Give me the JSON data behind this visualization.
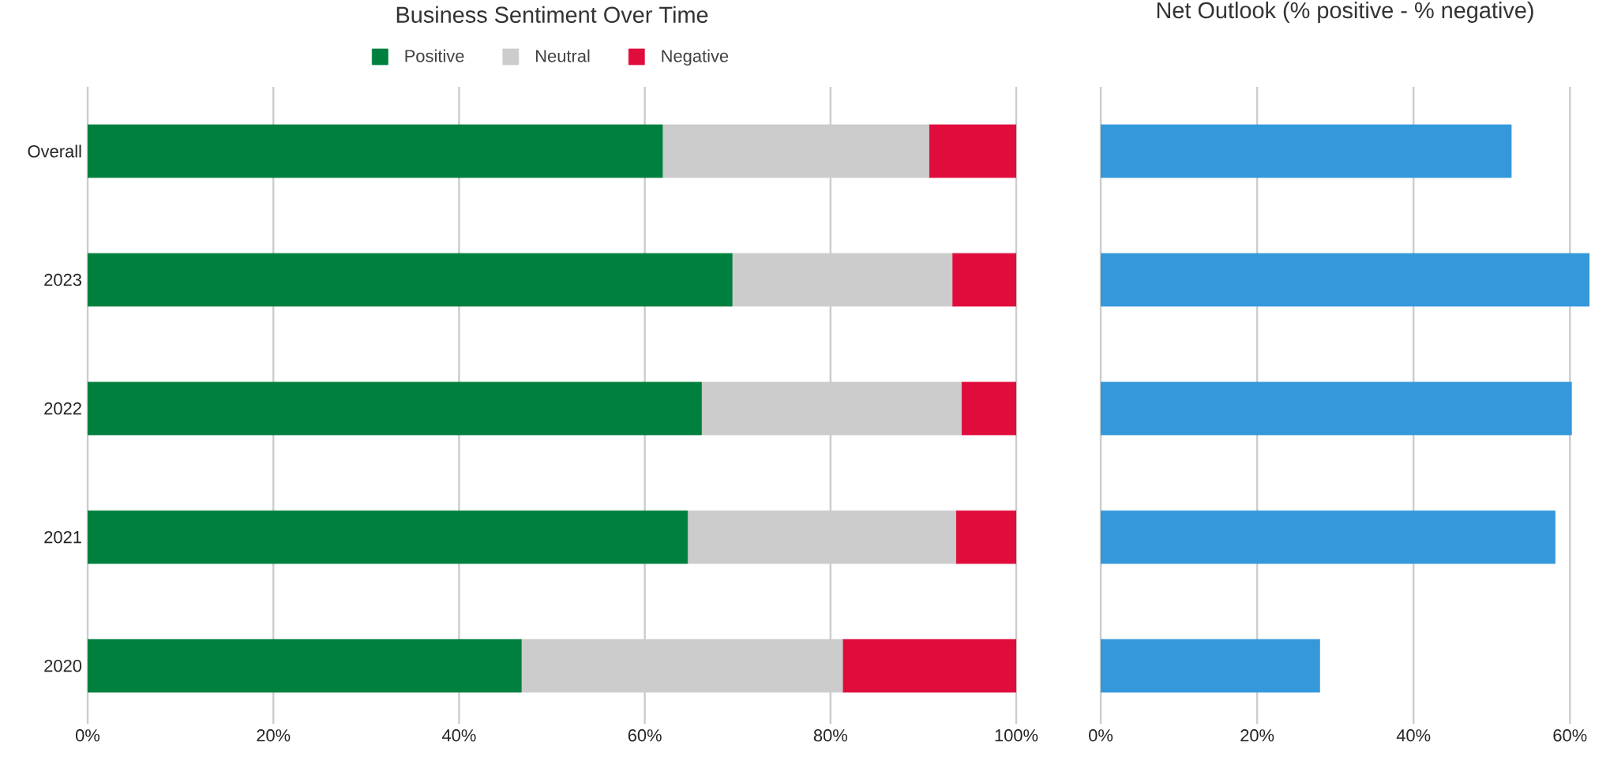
{
  "chart_data": [
    {
      "type": "bar",
      "orientation": "horizontal",
      "stacked": true,
      "title": "Business Sentiment Over Time",
      "categories": [
        "Overall",
        "2023",
        "2022",
        "2021",
        "2020"
      ],
      "series": [
        {
          "name": "Positive",
          "color": "#00803f",
          "values": [
            61.9,
            69.4,
            66.1,
            64.6,
            46.7
          ]
        },
        {
          "name": "Neutral",
          "color": "#cccccc",
          "values": [
            28.7,
            23.7,
            28.0,
            28.9,
            34.6
          ]
        },
        {
          "name": "Negative",
          "color": "#e00c3c",
          "values": [
            9.4,
            6.9,
            5.9,
            6.5,
            18.7
          ]
        }
      ],
      "xlim": [
        0,
        100
      ],
      "xticks": [
        {
          "value": 0,
          "label": "0%"
        },
        {
          "value": 20,
          "label": "20%"
        },
        {
          "value": 40,
          "label": "40%"
        },
        {
          "value": 60,
          "label": "60%"
        },
        {
          "value": 80,
          "label": "80%"
        },
        {
          "value": 100,
          "label": "100%"
        }
      ],
      "grid": "x",
      "legend": "top"
    },
    {
      "type": "bar",
      "orientation": "horizontal",
      "title": "Net Outlook (% positive - % negative)",
      "categories": [
        null,
        null,
        null,
        null,
        null
      ],
      "values": [
        52.5,
        62.5,
        60.2,
        58.1,
        28.0
      ],
      "color": "#3598db",
      "xlim": [
        0,
        62.5
      ],
      "xticks": [
        {
          "value": 0,
          "label": "0%"
        },
        {
          "value": 20,
          "label": "20%"
        },
        {
          "value": 40,
          "label": "40%"
        },
        {
          "value": 60,
          "label": "60%"
        }
      ],
      "grid": "x",
      "tick_labels": "x"
    }
  ]
}
